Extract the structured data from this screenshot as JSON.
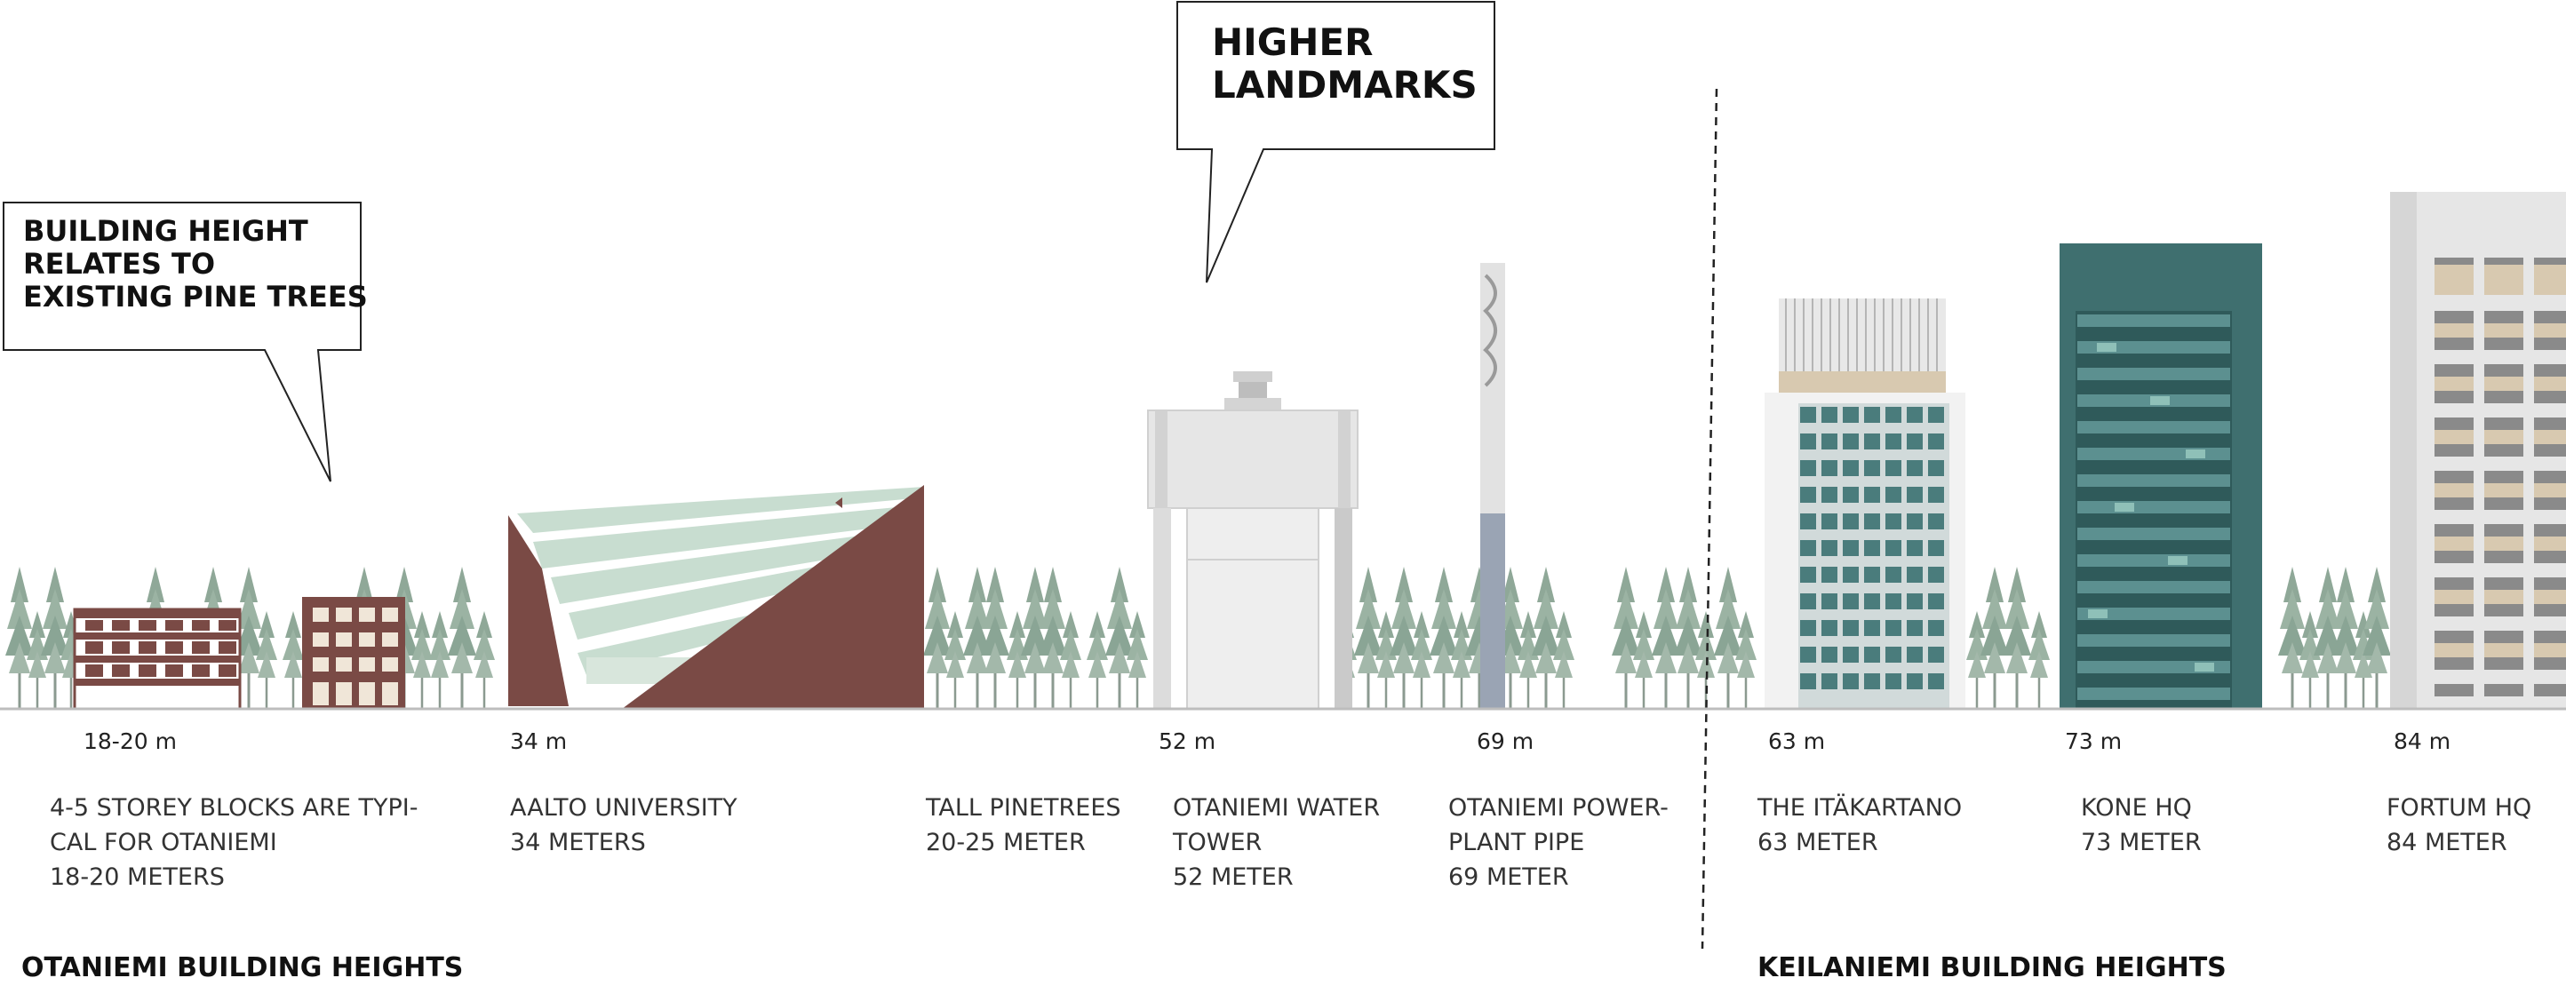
{
  "callouts": {
    "building_height": [
      "BUILDING HEIGHT",
      "RELATES TO",
      "EXISTING PINE TREES"
    ],
    "higher_landmarks": [
      "HIGHER",
      "LANDMARKS"
    ]
  },
  "buildings": [
    {
      "height_label": "18-20 m",
      "desc": [
        "4-5 STOREY BLOCKS ARE TYPI-",
        "CAL FOR OTANIEMI",
        "18-20 METERS"
      ]
    },
    {
      "height_label": "34 m",
      "desc": [
        "AALTO UNIVERSITY",
        "34 METERS"
      ]
    },
    {
      "height_label": "",
      "desc": [
        "TALL PINETREES",
        "20-25 METER"
      ]
    },
    {
      "height_label": "52 m",
      "desc": [
        "OTANIEMI WATER",
        "TOWER",
        "52 METER"
      ]
    },
    {
      "height_label": "69 m",
      "desc": [
        "OTANIEMI POWER-",
        "PLANT PIPE",
        "69 METER"
      ]
    },
    {
      "height_label": "63 m",
      "desc": [
        "THE ITÄKARTANO",
        "63 METER"
      ]
    },
    {
      "height_label": "73 m",
      "desc": [
        "KONE HQ",
        "73 METER"
      ]
    },
    {
      "height_label": "84 m",
      "desc": [
        "FORTUM HQ",
        "84 METER"
      ]
    }
  ],
  "sections": {
    "otaniemi": "OTANIEMI BUILDING HEIGHTS",
    "keilaniemi": "KEILANIEMI BUILDING HEIGHTS"
  },
  "colors": {
    "brick": "#7a4a45",
    "pine_green": "#8fa898",
    "glass_teal": "#3f6f6f",
    "pale_green": "#c8ddd0",
    "ground": "#bdbdbd"
  }
}
